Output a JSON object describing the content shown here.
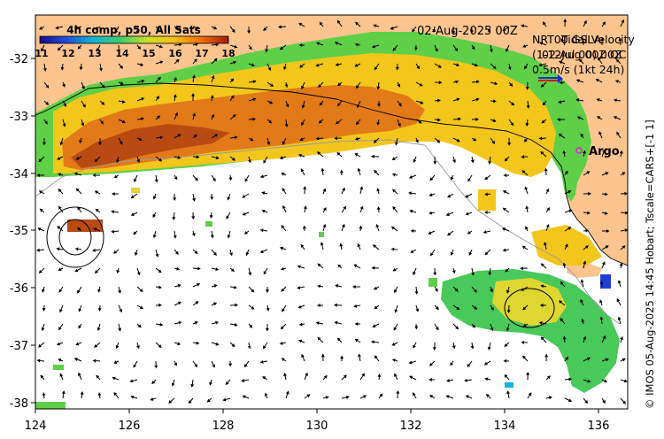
{
  "title": "02-Aug-2025 00Z",
  "colorbar": {
    "label": "4h comp, p50, All Sats",
    "ticks": [
      "11",
      "12",
      "13",
      "14",
      "15",
      "16",
      "17",
      "18"
    ],
    "min": 11,
    "max": 18,
    "colors": [
      "#1a0a8c",
      "#1f4fd6",
      "#13b4d8",
      "#3fcf6a",
      "#c8e02a",
      "#f7c11a",
      "#ee6a0a",
      "#a51d0d"
    ]
  },
  "legend": {
    "line1": "NRT00 GSLA",
    "line1_overlay": "Tidal Velocity",
    "line2": "(1-12Jul 00) 00Z",
    "line2_overlay": "02-Aug 00Z QC",
    "scale_text": "0.5m/s (1kt 24h)",
    "scale_colors": [
      "#1a2fd0",
      "#d41414"
    ],
    "argo_label": "Argo",
    "argo_color": "#e020e0"
  },
  "x_axis": {
    "ticks": [
      "124",
      "126",
      "128",
      "130",
      "132",
      "134",
      "136"
    ],
    "range": [
      124,
      136.6
    ]
  },
  "y_axis": {
    "ticks": [
      "-32",
      "-33",
      "-34",
      "-35",
      "-36",
      "-37",
      "-38"
    ],
    "range": [
      -38.1,
      -31.3
    ]
  },
  "credit": "© IMOS 05-Aug-2025 14:45 Hobart; Tscale=CARS+[-1 1]",
  "colors": {
    "land": "#fcc48e",
    "sea": "#ffffff",
    "frame": "#000000"
  }
}
